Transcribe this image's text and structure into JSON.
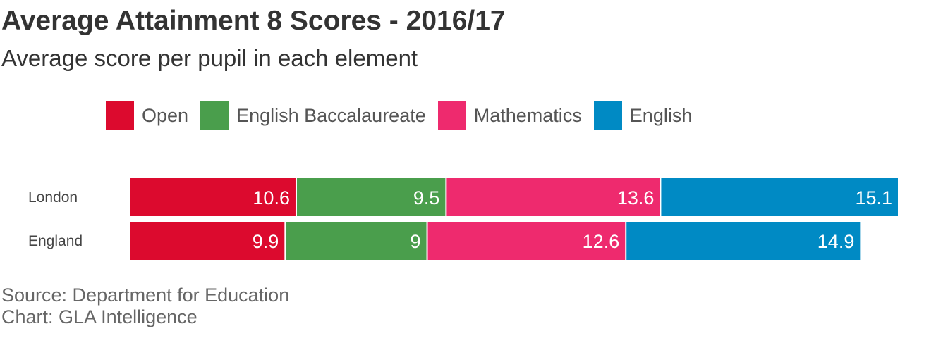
{
  "title": "Average Attainment 8 Scores - 2016/17",
  "subtitle": "Average score per pupil in each element",
  "source": "Source: Department for Education",
  "credit": "Chart: GLA Intelligence",
  "colors": {
    "Open": "#dc0a2e",
    "English Baccalaureate": "#4a9e4c",
    "Mathematics": "#ee2a6e",
    "English": "#008ac4"
  },
  "chart_data": {
    "type": "bar",
    "orientation": "horizontal",
    "stacked": true,
    "categories": [
      "London",
      "England"
    ],
    "series": [
      {
        "name": "Open",
        "values": [
          10.6,
          9.9
        ]
      },
      {
        "name": "English Baccalaureate",
        "values": [
          9.5,
          9
        ]
      },
      {
        "name": "Mathematics",
        "values": [
          13.6,
          12.6
        ]
      },
      {
        "name": "English",
        "values": [
          15.1,
          14.9
        ]
      }
    ],
    "legend": "top",
    "grid": false,
    "xlim": [
      0,
      48.8
    ]
  }
}
